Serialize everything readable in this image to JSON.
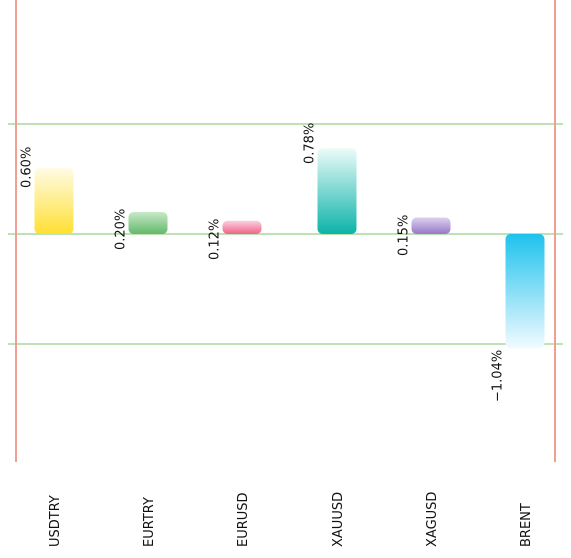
{
  "chart_data": {
    "type": "bar",
    "categories": [
      "USDTRY",
      "EURTRY",
      "EURUSD",
      "XAUUSD",
      "XAGUSD",
      "BRENT"
    ],
    "values": [
      0.6,
      0.2,
      0.12,
      0.78,
      0.15,
      -1.04
    ],
    "value_labels": [
      "0.60%",
      "0.20%",
      "0.12%",
      "0.78%",
      "0.15%",
      "−1.04%"
    ],
    "title": "",
    "xlabel": "",
    "ylabel": "",
    "ylim": [
      -2.1,
      2.1
    ],
    "gridlines": [
      -1,
      0,
      1
    ],
    "grid": true,
    "colors": {
      "USDTRY": {
        "strong": "#ffe033",
        "light": "#fffbe6",
        "gradient_strong_at": "base"
      },
      "EURTRY": {
        "strong": "#63b86a",
        "light": "#c8e9c8",
        "gradient_strong_at": "base"
      },
      "EURUSD": {
        "strong": "#f0628a",
        "light": "#fbd0dd",
        "gradient_strong_at": "base"
      },
      "XAUUSD": {
        "strong": "#0bb3a9",
        "light": "#ecfbf9",
        "gradient_strong_at": "base"
      },
      "XAGUSD": {
        "strong": "#9678c8",
        "light": "#ddd2f0",
        "gradient_strong_at": "base"
      },
      "BRENT": {
        "strong": "#1ec2ee",
        "light": "#f2fbff",
        "gradient_strong_at": "base"
      }
    },
    "grid_color": "#a8d89a",
    "axis_color": "#f0a090"
  }
}
